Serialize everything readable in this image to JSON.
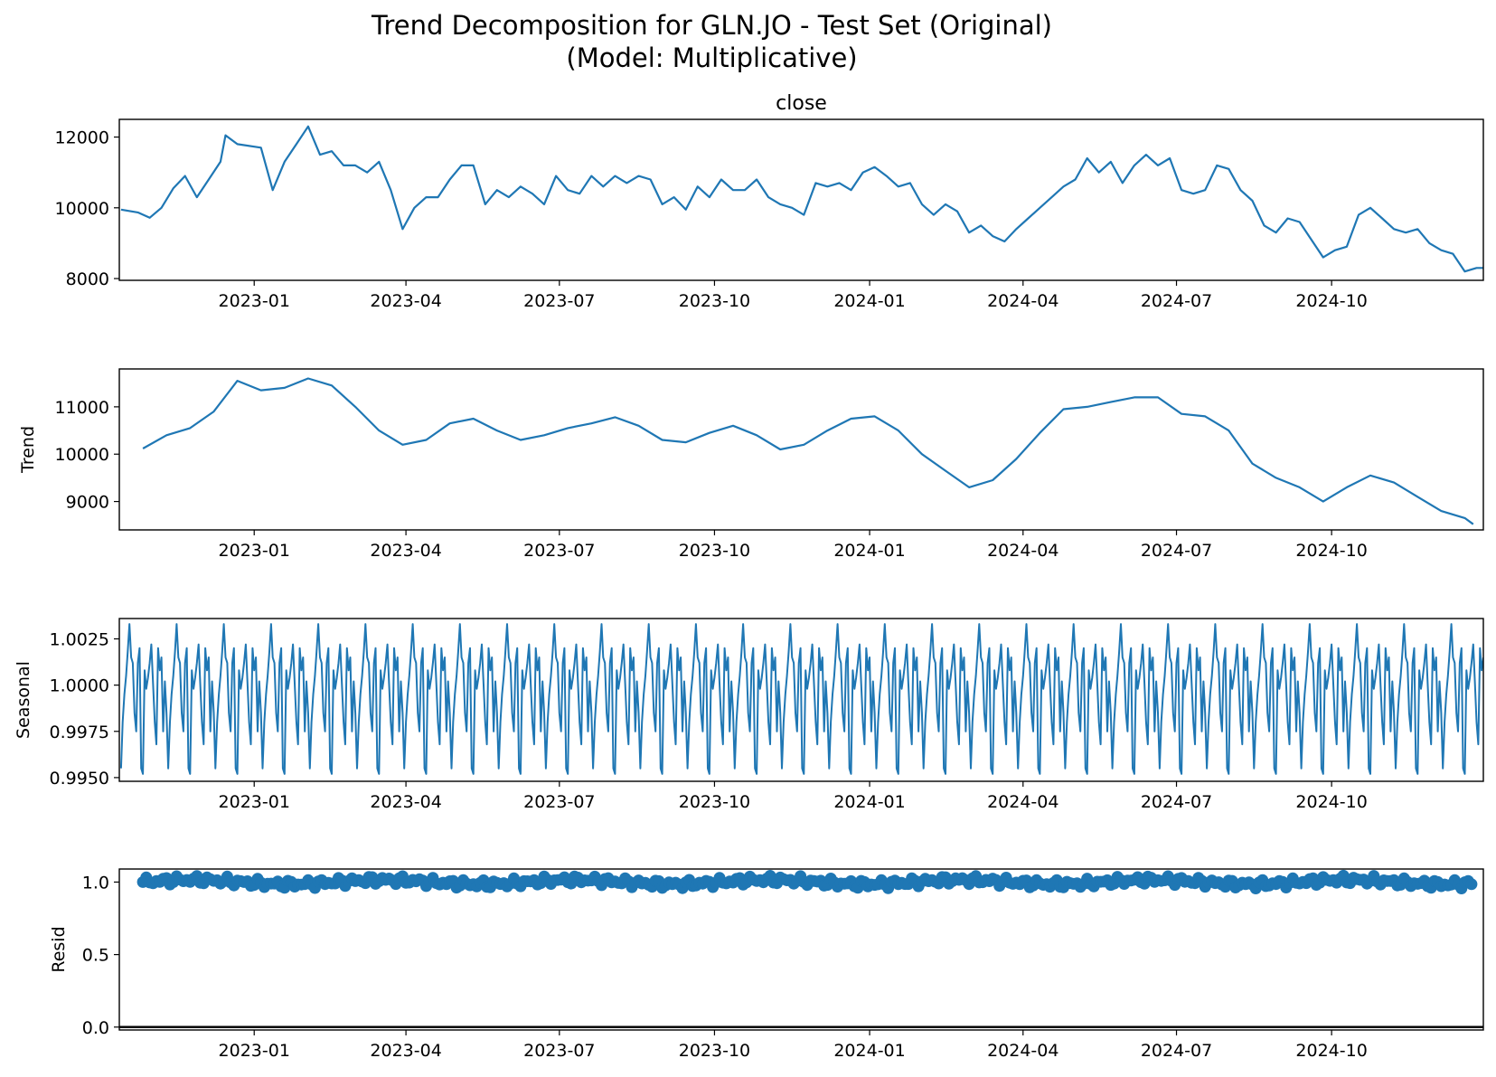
{
  "figure": {
    "title_line1": "Trend Decomposition for GLN.JO - Test Set (Original)",
    "title_line2": "(Model: Multiplicative)"
  },
  "chart_data": [
    {
      "type": "line",
      "title": "close",
      "xlabel": "",
      "ylabel": "",
      "x_ticks": [
        "2023-01",
        "2023-04",
        "2023-07",
        "2023-10",
        "2024-01",
        "2024-04",
        "2024-07",
        "2024-10"
      ],
      "x_range": [
        "2022-10-13",
        "2024-12-30"
      ],
      "ylim": [
        7950,
        12500
      ],
      "y_ticks": [
        "8000",
        "10000",
        "12000"
      ],
      "series": [
        {
          "points": [
            [
              "2022-10-14",
              9950
            ],
            [
              "2022-10-24",
              9870
            ],
            [
              "2022-10-31",
              9720
            ],
            [
              "2022-11-07",
              10000
            ],
            [
              "2022-11-14",
              10550
            ],
            [
              "2022-11-21",
              10900
            ],
            [
              "2022-11-28",
              10300
            ],
            [
              "2022-12-05",
              10800
            ],
            [
              "2022-12-12",
              11300
            ],
            [
              "2022-12-15",
              12050
            ],
            [
              "2022-12-22",
              11800
            ],
            [
              "2023-01-05",
              11700
            ],
            [
              "2023-01-12",
              10500
            ],
            [
              "2023-01-19",
              11300
            ],
            [
              "2023-01-26",
              11800
            ],
            [
              "2023-02-02",
              12300
            ],
            [
              "2023-02-09",
              11500
            ],
            [
              "2023-02-16",
              11600
            ],
            [
              "2023-02-23",
              11200
            ],
            [
              "2023-03-02",
              11200
            ],
            [
              "2023-03-09",
              11000
            ],
            [
              "2023-03-16",
              11300
            ],
            [
              "2023-03-23",
              10500
            ],
            [
              "2023-03-30",
              9400
            ],
            [
              "2023-04-06",
              10000
            ],
            [
              "2023-04-13",
              10300
            ],
            [
              "2023-04-20",
              10300
            ],
            [
              "2023-04-27",
              10800
            ],
            [
              "2023-05-04",
              11200
            ],
            [
              "2023-05-11",
              11200
            ],
            [
              "2023-05-18",
              10100
            ],
            [
              "2023-05-25",
              10500
            ],
            [
              "2023-06-01",
              10300
            ],
            [
              "2023-06-08",
              10600
            ],
            [
              "2023-06-15",
              10400
            ],
            [
              "2023-06-22",
              10100
            ],
            [
              "2023-06-29",
              10900
            ],
            [
              "2023-07-06",
              10500
            ],
            [
              "2023-07-13",
              10400
            ],
            [
              "2023-07-20",
              10900
            ],
            [
              "2023-07-27",
              10600
            ],
            [
              "2023-08-03",
              10900
            ],
            [
              "2023-08-10",
              10700
            ],
            [
              "2023-08-17",
              10900
            ],
            [
              "2023-08-24",
              10800
            ],
            [
              "2023-08-31",
              10100
            ],
            [
              "2023-09-07",
              10300
            ],
            [
              "2023-09-14",
              9950
            ],
            [
              "2023-09-21",
              10600
            ],
            [
              "2023-09-28",
              10300
            ],
            [
              "2023-10-05",
              10800
            ],
            [
              "2023-10-12",
              10500
            ],
            [
              "2023-10-19",
              10500
            ],
            [
              "2023-10-26",
              10800
            ],
            [
              "2023-11-02",
              10300
            ],
            [
              "2023-11-09",
              10100
            ],
            [
              "2023-11-16",
              10000
            ],
            [
              "2023-11-23",
              9800
            ],
            [
              "2023-11-30",
              10700
            ],
            [
              "2023-12-07",
              10600
            ],
            [
              "2023-12-14",
              10700
            ],
            [
              "2023-12-21",
              10500
            ],
            [
              "2023-12-28",
              11000
            ],
            [
              "2024-01-04",
              11150
            ],
            [
              "2024-01-11",
              10900
            ],
            [
              "2024-01-18",
              10600
            ],
            [
              "2024-01-25",
              10700
            ],
            [
              "2024-02-01",
              10100
            ],
            [
              "2024-02-08",
              9800
            ],
            [
              "2024-02-15",
              10100
            ],
            [
              "2024-02-22",
              9900
            ],
            [
              "2024-02-29",
              9300
            ],
            [
              "2024-03-07",
              9500
            ],
            [
              "2024-03-14",
              9200
            ],
            [
              "2024-03-21",
              9050
            ],
            [
              "2024-03-28",
              9400
            ],
            [
              "2024-04-04",
              9700
            ],
            [
              "2024-04-11",
              10000
            ],
            [
              "2024-04-18",
              10300
            ],
            [
              "2024-04-25",
              10600
            ],
            [
              "2024-05-02",
              10800
            ],
            [
              "2024-05-09",
              11400
            ],
            [
              "2024-05-16",
              11000
            ],
            [
              "2024-05-23",
              11300
            ],
            [
              "2024-05-30",
              10700
            ],
            [
              "2024-06-06",
              11200
            ],
            [
              "2024-06-13",
              11500
            ],
            [
              "2024-06-20",
              11200
            ],
            [
              "2024-06-27",
              11400
            ],
            [
              "2024-07-04",
              10500
            ],
            [
              "2024-07-11",
              10400
            ],
            [
              "2024-07-18",
              10500
            ],
            [
              "2024-07-25",
              11200
            ],
            [
              "2024-08-01",
              11100
            ],
            [
              "2024-08-08",
              10500
            ],
            [
              "2024-08-15",
              10200
            ],
            [
              "2024-08-22",
              9500
            ],
            [
              "2024-08-29",
              9300
            ],
            [
              "2024-09-05",
              9700
            ],
            [
              "2024-09-12",
              9600
            ],
            [
              "2024-09-19",
              9100
            ],
            [
              "2024-09-26",
              8600
            ],
            [
              "2024-10-03",
              8800
            ],
            [
              "2024-10-10",
              8900
            ],
            [
              "2024-10-17",
              9800
            ],
            [
              "2024-10-24",
              10000
            ],
            [
              "2024-10-31",
              9700
            ],
            [
              "2024-11-07",
              9400
            ],
            [
              "2024-11-14",
              9300
            ],
            [
              "2024-11-21",
              9400
            ],
            [
              "2024-11-28",
              9000
            ],
            [
              "2024-12-05",
              8800
            ],
            [
              "2024-12-12",
              8700
            ],
            [
              "2024-12-19",
              8200
            ],
            [
              "2024-12-26",
              8300
            ],
            [
              "2024-12-30",
              8300
            ]
          ]
        }
      ]
    },
    {
      "type": "line",
      "title": "",
      "xlabel": "",
      "ylabel": "Trend",
      "x_ticks": [
        "2023-01",
        "2023-04",
        "2023-07",
        "2023-10",
        "2024-01",
        "2024-04",
        "2024-07",
        "2024-10"
      ],
      "x_range": [
        "2022-10-13",
        "2024-12-30"
      ],
      "ylim": [
        8400,
        11800
      ],
      "y_ticks": [
        "9000",
        "10000",
        "11000"
      ],
      "series": [
        {
          "points": [
            [
              "2022-10-27",
              10120
            ],
            [
              "2022-11-10",
              10400
            ],
            [
              "2022-11-24",
              10550
            ],
            [
              "2022-12-08",
              10900
            ],
            [
              "2022-12-22",
              11550
            ],
            [
              "2023-01-05",
              11350
            ],
            [
              "2023-01-19",
              11400
            ],
            [
              "2023-02-02",
              11600
            ],
            [
              "2023-02-16",
              11450
            ],
            [
              "2023-03-02",
              11000
            ],
            [
              "2023-03-16",
              10500
            ],
            [
              "2023-03-30",
              10200
            ],
            [
              "2023-04-13",
              10300
            ],
            [
              "2023-04-27",
              10650
            ],
            [
              "2023-05-11",
              10750
            ],
            [
              "2023-05-25",
              10500
            ],
            [
              "2023-06-08",
              10300
            ],
            [
              "2023-06-22",
              10400
            ],
            [
              "2023-07-06",
              10550
            ],
            [
              "2023-07-20",
              10650
            ],
            [
              "2023-08-03",
              10780
            ],
            [
              "2023-08-17",
              10600
            ],
            [
              "2023-08-31",
              10300
            ],
            [
              "2023-09-14",
              10250
            ],
            [
              "2023-09-28",
              10450
            ],
            [
              "2023-10-12",
              10600
            ],
            [
              "2023-10-26",
              10400
            ],
            [
              "2023-11-09",
              10100
            ],
            [
              "2023-11-23",
              10200
            ],
            [
              "2023-12-07",
              10500
            ],
            [
              "2023-12-21",
              10750
            ],
            [
              "2024-01-04",
              10800
            ],
            [
              "2024-01-18",
              10500
            ],
            [
              "2024-02-01",
              10000
            ],
            [
              "2024-02-15",
              9650
            ],
            [
              "2024-02-29",
              9300
            ],
            [
              "2024-03-14",
              9450
            ],
            [
              "2024-03-28",
              9900
            ],
            [
              "2024-04-11",
              10450
            ],
            [
              "2024-04-25",
              10950
            ],
            [
              "2024-05-09",
              11000
            ],
            [
              "2024-05-23",
              11100
            ],
            [
              "2024-06-06",
              11200
            ],
            [
              "2024-06-20",
              11200
            ],
            [
              "2024-07-04",
              10850
            ],
            [
              "2024-07-18",
              10800
            ],
            [
              "2024-08-01",
              10500
            ],
            [
              "2024-08-15",
              9800
            ],
            [
              "2024-08-29",
              9500
            ],
            [
              "2024-09-12",
              9300
            ],
            [
              "2024-09-26",
              9000
            ],
            [
              "2024-10-10",
              9300
            ],
            [
              "2024-10-24",
              9550
            ],
            [
              "2024-11-07",
              9400
            ],
            [
              "2024-11-21",
              9100
            ],
            [
              "2024-12-05",
              8800
            ],
            [
              "2024-12-19",
              8650
            ],
            [
              "2024-12-24",
              8520
            ]
          ]
        }
      ]
    },
    {
      "type": "line",
      "title": "",
      "xlabel": "",
      "ylabel": "Seasonal",
      "x_ticks": [
        "2023-01",
        "2023-04",
        "2023-07",
        "2023-10",
        "2024-01",
        "2024-04",
        "2024-07",
        "2024-10"
      ],
      "x_range": [
        "2022-10-13",
        "2024-12-30"
      ],
      "ylim": [
        0.9948,
        1.0036
      ],
      "y_ticks": [
        "0.9950",
        "0.9975",
        "1.0000",
        "1.0025"
      ],
      "series": [
        {
          "period_days": 28,
          "pattern": [
            0.9955,
            0.998,
            0.9995,
            1.0005,
            1.0018,
            1.0033,
            1.0015,
            1.0012,
            0.9985,
            0.9975,
            1.0012,
            1.002,
            0.9955,
            0.9952,
            1.0008,
            0.9998,
            1.0004,
            1.0012,
            1.0022,
            1.0001,
            0.998,
            0.9968,
            1.002,
            1.0008,
            1.0015,
            0.9975,
            1.0002,
            0.9985
          ]
        }
      ]
    },
    {
      "type": "scatter",
      "title": "",
      "xlabel": "",
      "ylabel": "Resid",
      "x_ticks": [
        "2023-01",
        "2023-04",
        "2023-07",
        "2023-10",
        "2024-01",
        "2024-04",
        "2024-07",
        "2024-10"
      ],
      "x_range": [
        "2022-10-13",
        "2024-12-30"
      ],
      "ylim": [
        -0.02,
        1.09
      ],
      "y_ticks": [
        "0.0",
        "0.5",
        "1.0"
      ],
      "baseline": 0.0,
      "series": [
        {
          "center": 1.0,
          "spread": 0.06
        }
      ]
    }
  ],
  "colors": {
    "line": "#1f77b4",
    "axis": "#000000"
  }
}
